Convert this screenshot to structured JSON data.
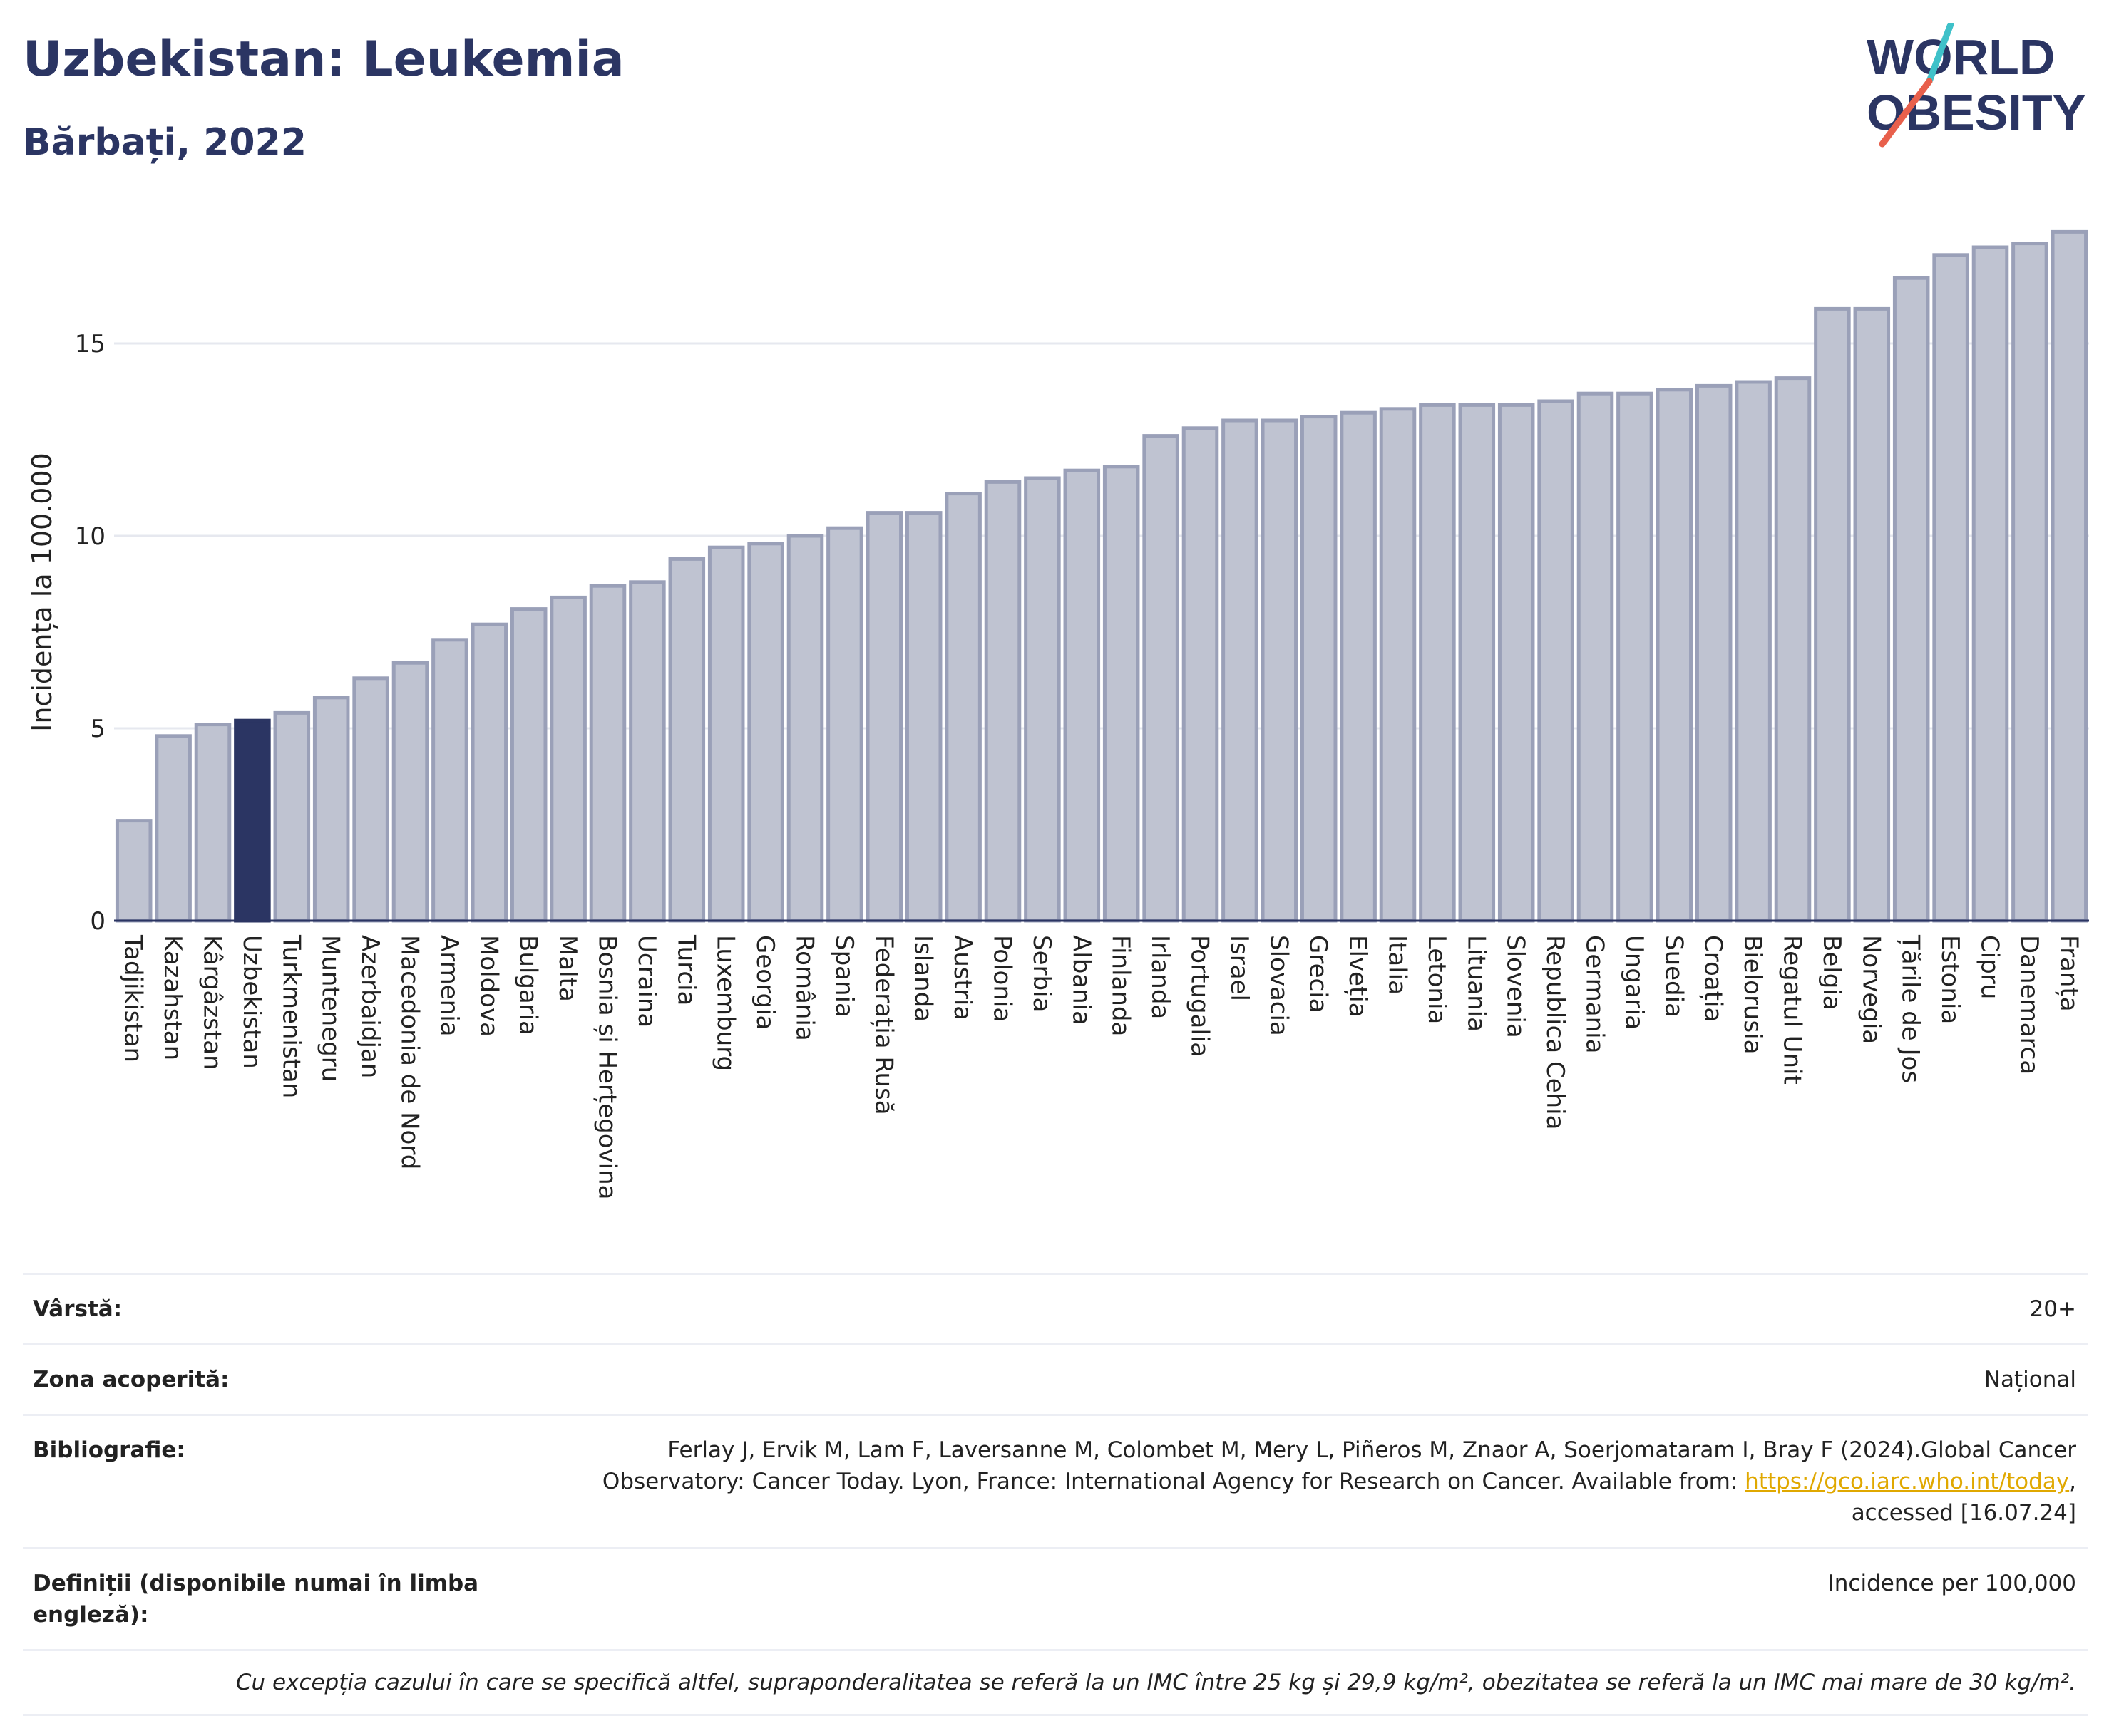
{
  "header": {
    "title": "Uzbekistan: Leukemia",
    "subtitle": "Bărbați, 2022"
  },
  "logo": {
    "line1": "WORLD",
    "line2": "OBESITY",
    "text_color": "#2b3563",
    "slash_colors": [
      "#3fc1c9",
      "#e8604c"
    ]
  },
  "colors": {
    "highlight_bar": "#2b3563",
    "default_bar": "#bfc3d1",
    "bar_stroke": "#9aa0b8",
    "grid": "#e6e8ef",
    "axis": "#2b3563"
  },
  "chart_data": {
    "type": "bar",
    "title": "Uzbekistan: Leukemia",
    "subtitle": "Bărbați, 2022",
    "ylabel": "Incidența la 100.000",
    "xlabel": "",
    "ylim": [
      0,
      18
    ],
    "yticks": [
      0,
      5,
      10,
      15
    ],
    "grid": true,
    "highlight": "Uzbekistan",
    "categories": [
      "Tadjikistan",
      "Kazahstan",
      "Kârgâzstan",
      "Uzbekistan",
      "Turkmenistan",
      "Muntenegru",
      "Azerbaidjan",
      "Macedonia de Nord",
      "Armenia",
      "Moldova",
      "Bulgaria",
      "Malta",
      "Bosnia și Herțegovina",
      "Ucraina",
      "Turcia",
      "Luxemburg",
      "Georgia",
      "România",
      "Spania",
      "Federația Rusă",
      "Islanda",
      "Austria",
      "Polonia",
      "Serbia",
      "Albania",
      "Finlanda",
      "Irlanda",
      "Portugalia",
      "Israel",
      "Slovacia",
      "Grecia",
      "Elveția",
      "Italia",
      "Letonia",
      "Lituania",
      "Slovenia",
      "Republica Cehia",
      "Germania",
      "Ungaria",
      "Suedia",
      "Croația",
      "Bielorusia",
      "Regatul Unit",
      "Belgia",
      "Norvegia",
      "Țările de Jos",
      "Estonia",
      "Cipru",
      "Danemarca",
      "Franța"
    ],
    "values": [
      2.6,
      4.8,
      5.1,
      5.2,
      5.4,
      5.8,
      6.3,
      6.7,
      7.3,
      7.7,
      8.1,
      8.4,
      8.7,
      8.8,
      9.4,
      9.7,
      9.8,
      10.0,
      10.2,
      10.6,
      10.6,
      11.1,
      11.4,
      11.5,
      11.7,
      11.8,
      12.6,
      12.8,
      13.0,
      13.0,
      13.1,
      13.2,
      13.3,
      13.4,
      13.4,
      13.4,
      13.5,
      13.7,
      13.7,
      13.8,
      13.9,
      14.0,
      14.1,
      15.9,
      15.9,
      16.7,
      17.3,
      17.5,
      17.6,
      17.9
    ]
  },
  "info": {
    "rows": [
      {
        "label": "Vârstă:",
        "value": "20+"
      },
      {
        "label": "Zona acoperită:",
        "value": "Național"
      }
    ],
    "bibliography": {
      "label": "Bibliografie:",
      "line1": "Ferlay J, Ervik M, Lam F, Laversanne M, Colombet M, Mery L, Piñeros M, Znaor A, Soerjomataram I, Bray F (2024).Global Cancer",
      "line2_prefix": "Observatory: Cancer Today. Lyon, France: International Agency for Research on Cancer. Available from: ",
      "link": "https://gco.iarc.who.int/today",
      "line2_suffix": ",",
      "line3": "accessed [16.07.24]"
    },
    "definitions": {
      "label": "Definiții (disponibile numai în limba engleză):",
      "value": "Incidence per 100,000"
    },
    "note": "Cu excepția cazului în care se specifică altfel, supraponderalitatea se referă la un IMC între 25 kg și 29,9 kg/m², obezitatea se referă la un IMC mai mare de 30 kg/m²."
  }
}
